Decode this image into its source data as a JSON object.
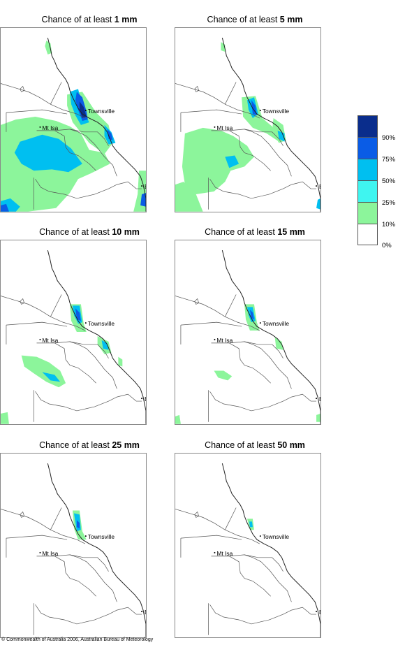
{
  "panels": [
    {
      "title_prefix": "Chance of at least ",
      "threshold": "1 mm"
    },
    {
      "title_prefix": "Chance of at least ",
      "threshold": "5 mm"
    },
    {
      "title_prefix": "Chance of at least ",
      "threshold": "10 mm"
    },
    {
      "title_prefix": "Chance of at least ",
      "threshold": "15 mm"
    },
    {
      "title_prefix": "Chance of at least ",
      "threshold": "25 mm"
    },
    {
      "title_prefix": "Chance of at least ",
      "threshold": "50 mm"
    }
  ],
  "places": {
    "townsville": "Townsville",
    "mt_isa": "Mt Isa",
    "brisbane": "BRIS"
  },
  "legend": {
    "ticks": [
      "90%",
      "75%",
      "50%",
      "25%",
      "10%",
      "0%"
    ],
    "colors": [
      "#0a2d8c",
      "#0a5ce6",
      "#00bff0",
      "#3ff5f0",
      "#8cf59b",
      "#ffffff"
    ]
  },
  "copyright": "© Commonwealth of Australia 2006, Australian Bureau of Meteorology"
}
